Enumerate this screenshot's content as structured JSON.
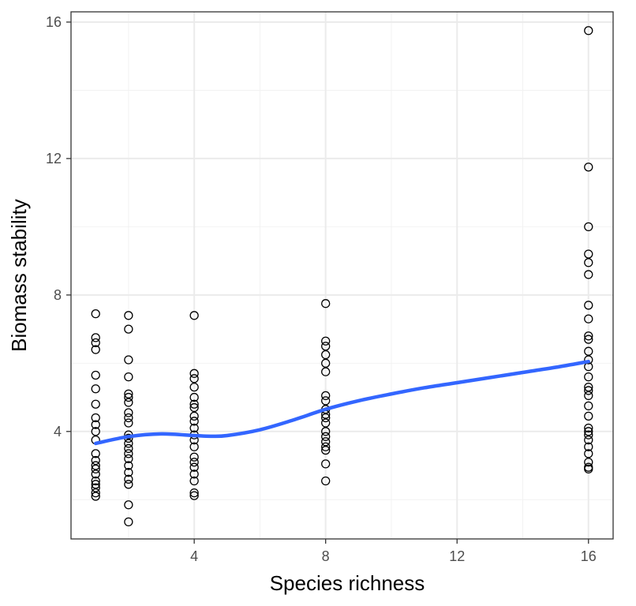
{
  "chart_data": {
    "type": "scatter",
    "xlabel": "Species richness",
    "ylabel": "Biomass stability",
    "xlim": [
      0.25,
      16.75
    ],
    "ylim": [
      0.85,
      16.3
    ],
    "x_ticks": [
      4,
      8,
      12,
      16
    ],
    "x_tick_labels": [
      "4",
      "8",
      "12",
      "16"
    ],
    "y_ticks": [
      4,
      8,
      12,
      16
    ],
    "y_tick_labels": [
      "4",
      "8",
      "12",
      "16"
    ],
    "x_minor": [
      2,
      6,
      10,
      14
    ],
    "y_minor": [
      2,
      6,
      10,
      14
    ],
    "grid": true,
    "points": [
      {
        "x": 1,
        "y": 7.45
      },
      {
        "x": 1,
        "y": 6.75
      },
      {
        "x": 1,
        "y": 6.6
      },
      {
        "x": 1,
        "y": 6.4
      },
      {
        "x": 1,
        "y": 5.65
      },
      {
        "x": 1,
        "y": 5.25
      },
      {
        "x": 1,
        "y": 4.8
      },
      {
        "x": 1,
        "y": 4.4
      },
      {
        "x": 1,
        "y": 4.2
      },
      {
        "x": 1,
        "y": 4.0
      },
      {
        "x": 1,
        "y": 3.75
      },
      {
        "x": 1,
        "y": 3.35
      },
      {
        "x": 1,
        "y": 3.15
      },
      {
        "x": 1,
        "y": 3.0
      },
      {
        "x": 1,
        "y": 2.9
      },
      {
        "x": 1,
        "y": 2.75
      },
      {
        "x": 1,
        "y": 2.55
      },
      {
        "x": 1,
        "y": 2.45
      },
      {
        "x": 1,
        "y": 2.35
      },
      {
        "x": 1,
        "y": 2.2
      },
      {
        "x": 1,
        "y": 2.1
      },
      {
        "x": 2,
        "y": 7.4
      },
      {
        "x": 2,
        "y": 7.0
      },
      {
        "x": 2,
        "y": 6.1
      },
      {
        "x": 2,
        "y": 5.6
      },
      {
        "x": 2,
        "y": 5.1
      },
      {
        "x": 2,
        "y": 5.0
      },
      {
        "x": 2,
        "y": 4.85
      },
      {
        "x": 2,
        "y": 4.55
      },
      {
        "x": 2,
        "y": 4.4
      },
      {
        "x": 2,
        "y": 4.25
      },
      {
        "x": 2,
        "y": 3.9
      },
      {
        "x": 2,
        "y": 3.8
      },
      {
        "x": 2,
        "y": 3.65
      },
      {
        "x": 2,
        "y": 3.5
      },
      {
        "x": 2,
        "y": 3.35
      },
      {
        "x": 2,
        "y": 3.2
      },
      {
        "x": 2,
        "y": 3.0
      },
      {
        "x": 2,
        "y": 2.8
      },
      {
        "x": 2,
        "y": 2.6
      },
      {
        "x": 2,
        "y": 2.45
      },
      {
        "x": 2,
        "y": 1.85
      },
      {
        "x": 2,
        "y": 1.35
      },
      {
        "x": 4,
        "y": 7.4
      },
      {
        "x": 4,
        "y": 5.7
      },
      {
        "x": 4,
        "y": 5.55
      },
      {
        "x": 4,
        "y": 5.3
      },
      {
        "x": 4,
        "y": 5.0
      },
      {
        "x": 4,
        "y": 4.8
      },
      {
        "x": 4,
        "y": 4.7
      },
      {
        "x": 4,
        "y": 4.45
      },
      {
        "x": 4,
        "y": 4.3
      },
      {
        "x": 4,
        "y": 4.1
      },
      {
        "x": 4,
        "y": 3.9
      },
      {
        "x": 4,
        "y": 3.75
      },
      {
        "x": 4,
        "y": 3.55
      },
      {
        "x": 4,
        "y": 3.25
      },
      {
        "x": 4,
        "y": 3.1
      },
      {
        "x": 4,
        "y": 2.95
      },
      {
        "x": 4,
        "y": 2.75
      },
      {
        "x": 4,
        "y": 2.55
      },
      {
        "x": 4,
        "y": 2.2
      },
      {
        "x": 4,
        "y": 2.12
      },
      {
        "x": 8,
        "y": 7.75
      },
      {
        "x": 8,
        "y": 6.65
      },
      {
        "x": 8,
        "y": 6.5
      },
      {
        "x": 8,
        "y": 6.25
      },
      {
        "x": 8,
        "y": 6.0
      },
      {
        "x": 8,
        "y": 5.75
      },
      {
        "x": 8,
        "y": 5.05
      },
      {
        "x": 8,
        "y": 4.9
      },
      {
        "x": 8,
        "y": 4.65
      },
      {
        "x": 8,
        "y": 4.5
      },
      {
        "x": 8,
        "y": 4.4
      },
      {
        "x": 8,
        "y": 4.25
      },
      {
        "x": 8,
        "y": 4.0
      },
      {
        "x": 8,
        "y": 3.85
      },
      {
        "x": 8,
        "y": 3.7
      },
      {
        "x": 8,
        "y": 3.55
      },
      {
        "x": 8,
        "y": 3.45
      },
      {
        "x": 8,
        "y": 3.05
      },
      {
        "x": 8,
        "y": 2.55
      },
      {
        "x": 16,
        "y": 15.75
      },
      {
        "x": 16,
        "y": 11.75
      },
      {
        "x": 16,
        "y": 10.0
      },
      {
        "x": 16,
        "y": 9.2
      },
      {
        "x": 16,
        "y": 8.95
      },
      {
        "x": 16,
        "y": 8.6
      },
      {
        "x": 16,
        "y": 7.7
      },
      {
        "x": 16,
        "y": 7.3
      },
      {
        "x": 16,
        "y": 6.8
      },
      {
        "x": 16,
        "y": 6.7
      },
      {
        "x": 16,
        "y": 6.35
      },
      {
        "x": 16,
        "y": 6.1
      },
      {
        "x": 16,
        "y": 5.9
      },
      {
        "x": 16,
        "y": 5.6
      },
      {
        "x": 16,
        "y": 5.3
      },
      {
        "x": 16,
        "y": 5.2
      },
      {
        "x": 16,
        "y": 5.05
      },
      {
        "x": 16,
        "y": 4.75
      },
      {
        "x": 16,
        "y": 4.45
      },
      {
        "x": 16,
        "y": 4.1
      },
      {
        "x": 16,
        "y": 4.0
      },
      {
        "x": 16,
        "y": 3.9
      },
      {
        "x": 16,
        "y": 3.75
      },
      {
        "x": 16,
        "y": 3.55
      },
      {
        "x": 16,
        "y": 3.35
      },
      {
        "x": 16,
        "y": 3.1
      },
      {
        "x": 16,
        "y": 2.95
      },
      {
        "x": 16,
        "y": 2.9
      }
    ],
    "trend": {
      "x": [
        1,
        2,
        3,
        4,
        4.5,
        5,
        6,
        7,
        8,
        9,
        10,
        11,
        12,
        13,
        14,
        15,
        16
      ],
      "y": [
        3.65,
        3.85,
        3.93,
        3.88,
        3.86,
        3.88,
        4.05,
        4.33,
        4.65,
        4.9,
        5.1,
        5.28,
        5.43,
        5.58,
        5.73,
        5.88,
        6.05
      ]
    },
    "colors": {
      "point_stroke": "#000000",
      "trend_line": "#3366ff",
      "grid_major": "#ebebeb",
      "grid_minor": "#f2f2f2",
      "panel_border": "#333333",
      "tick_label": "#4d4d4d"
    }
  }
}
